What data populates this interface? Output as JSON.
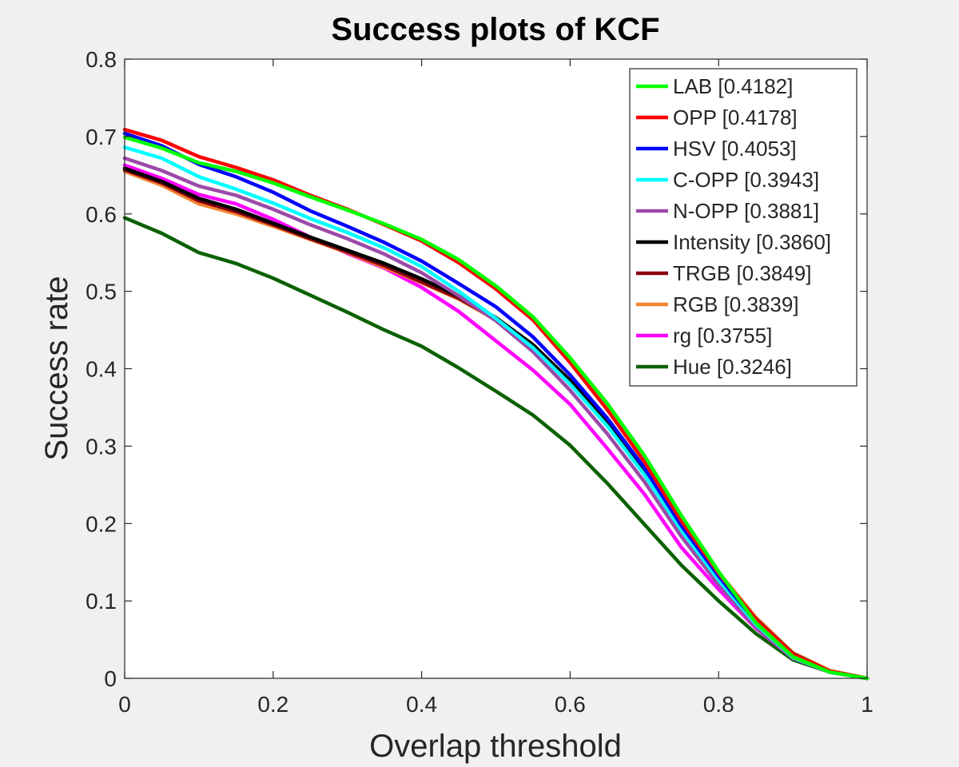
{
  "chart_data": {
    "type": "line",
    "title": "Success plots of KCF",
    "xlabel": "Overlap threshold",
    "ylabel": "Success rate",
    "xlim": [
      0,
      1
    ],
    "ylim": [
      0,
      0.8
    ],
    "xticks": [
      0,
      0.2,
      0.4,
      0.6,
      0.8,
      1
    ],
    "xtick_labels": [
      "0",
      "0.2",
      "0.4",
      "0.6",
      "0.8",
      "1"
    ],
    "yticks": [
      0,
      0.1,
      0.2,
      0.3,
      0.4,
      0.5,
      0.6,
      0.7,
      0.8
    ],
    "ytick_labels": [
      "0",
      "0.1",
      "0.2",
      "0.3",
      "0.4",
      "0.5",
      "0.6",
      "0.7",
      "0.8"
    ],
    "grid": false,
    "legend_position": "top-right",
    "x": [
      0,
      0.05,
      0.1,
      0.15,
      0.2,
      0.25,
      0.3,
      0.35,
      0.4,
      0.45,
      0.5,
      0.55,
      0.6,
      0.65,
      0.7,
      0.75,
      0.8,
      0.85,
      0.9,
      0.95,
      1
    ],
    "series": [
      {
        "name": "LAB [0.4182]",
        "color": "#00ff00",
        "values": [
          0.699,
          0.685,
          0.666,
          0.655,
          0.64,
          0.622,
          0.605,
          0.587,
          0.567,
          0.541,
          0.507,
          0.467,
          0.414,
          0.355,
          0.288,
          0.21,
          0.138,
          0.072,
          0.028,
          0.008,
          0.0
        ]
      },
      {
        "name": "OPP [0.4178]",
        "color": "#ff0000",
        "values": [
          0.709,
          0.695,
          0.674,
          0.66,
          0.644,
          0.624,
          0.606,
          0.586,
          0.565,
          0.537,
          0.503,
          0.463,
          0.408,
          0.347,
          0.28,
          0.203,
          0.136,
          0.076,
          0.031,
          0.009,
          0.0
        ]
      },
      {
        "name": "HSV [0.4053]",
        "color": "#0000ff",
        "values": [
          0.704,
          0.688,
          0.664,
          0.648,
          0.628,
          0.604,
          0.584,
          0.563,
          0.539,
          0.51,
          0.48,
          0.441,
          0.392,
          0.336,
          0.272,
          0.197,
          0.132,
          0.073,
          0.029,
          0.008,
          0.0
        ]
      },
      {
        "name": "C-OPP [0.3943]",
        "color": "#00ffff",
        "values": [
          0.686,
          0.672,
          0.648,
          0.632,
          0.614,
          0.594,
          0.576,
          0.556,
          0.532,
          0.5,
          0.465,
          0.427,
          0.38,
          0.326,
          0.263,
          0.191,
          0.127,
          0.07,
          0.027,
          0.008,
          0.0
        ]
      },
      {
        "name": "N-OPP [0.3881]",
        "color": "#9b4aa8",
        "values": [
          0.672,
          0.656,
          0.636,
          0.624,
          0.606,
          0.586,
          0.568,
          0.548,
          0.524,
          0.494,
          0.462,
          0.422,
          0.372,
          0.316,
          0.254,
          0.183,
          0.121,
          0.066,
          0.026,
          0.008,
          0.0
        ]
      },
      {
        "name": "Intensity [0.3860]",
        "color": "#000000",
        "values": [
          0.659,
          0.642,
          0.62,
          0.606,
          0.588,
          0.57,
          0.553,
          0.536,
          0.516,
          0.494,
          0.466,
          0.431,
          0.385,
          0.33,
          0.27,
          0.197,
          0.133,
          0.075,
          0.031,
          0.009,
          0.0
        ]
      },
      {
        "name": "TRGB [0.3849]",
        "color": "#8b0010",
        "values": [
          0.657,
          0.64,
          0.617,
          0.603,
          0.586,
          0.568,
          0.551,
          0.533,
          0.512,
          0.491,
          0.464,
          0.43,
          0.384,
          0.33,
          0.271,
          0.198,
          0.135,
          0.077,
          0.032,
          0.009,
          0.0
        ]
      },
      {
        "name": "RGB [0.3839]",
        "color": "#f58431",
        "values": [
          0.655,
          0.637,
          0.613,
          0.6,
          0.584,
          0.567,
          0.55,
          0.531,
          0.511,
          0.49,
          0.463,
          0.428,
          0.383,
          0.331,
          0.272,
          0.2,
          0.137,
          0.079,
          0.033,
          0.01,
          0.0
        ]
      },
      {
        "name": "rg [0.3755]",
        "color": "#ff00ff",
        "values": [
          0.663,
          0.646,
          0.625,
          0.613,
          0.593,
          0.57,
          0.549,
          0.53,
          0.505,
          0.474,
          0.436,
          0.398,
          0.354,
          0.297,
          0.238,
          0.169,
          0.115,
          0.065,
          0.026,
          0.008,
          0.0
        ]
      },
      {
        "name": "Hue [0.3246]",
        "color": "#0b6100",
        "values": [
          0.595,
          0.575,
          0.55,
          0.536,
          0.517,
          0.495,
          0.473,
          0.45,
          0.429,
          0.401,
          0.371,
          0.34,
          0.301,
          0.252,
          0.199,
          0.146,
          0.1,
          0.058,
          0.024,
          0.008,
          0.0
        ]
      }
    ]
  },
  "colors": {
    "figure_background": "#f0f0f0",
    "axes_background": "#ffffff",
    "axes_edge": "#262626"
  }
}
